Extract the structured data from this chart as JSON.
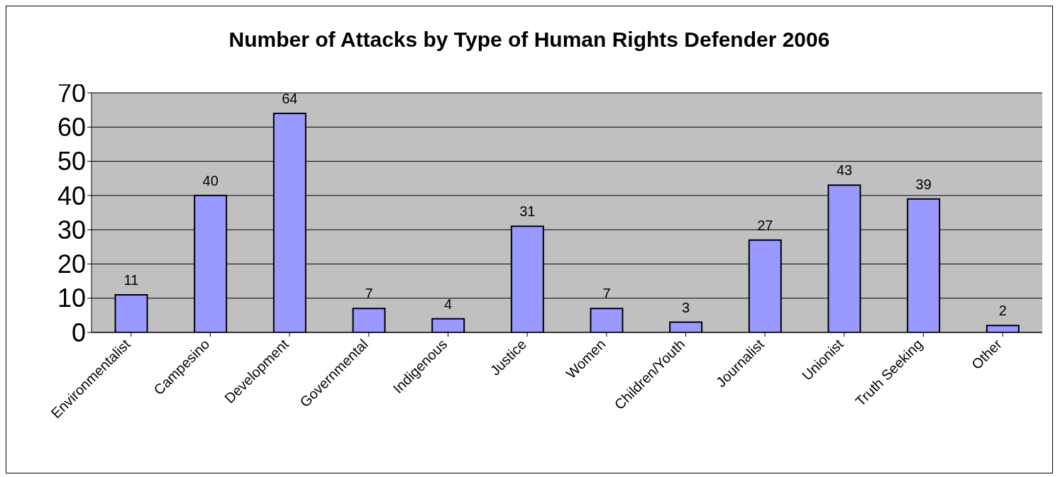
{
  "chart_data": {
    "type": "bar",
    "title": "Number of Attacks by Type of Human Rights Defender 2006",
    "categories": [
      "Environmentalist",
      "Campesino",
      "Development",
      "Governmental",
      "Indigenous",
      "Justice",
      "Women",
      "Children/Youth",
      "Journalist",
      "Unionist",
      "Truth Seeking",
      "Other"
    ],
    "values": [
      11,
      40,
      64,
      7,
      4,
      31,
      7,
      3,
      27,
      43,
      39,
      2
    ],
    "color": "#9999ff",
    "ylim": [
      0,
      70
    ],
    "yticks": [
      0,
      10,
      20,
      30,
      40,
      50,
      60,
      70
    ],
    "grid": "y",
    "data_labels": true
  }
}
